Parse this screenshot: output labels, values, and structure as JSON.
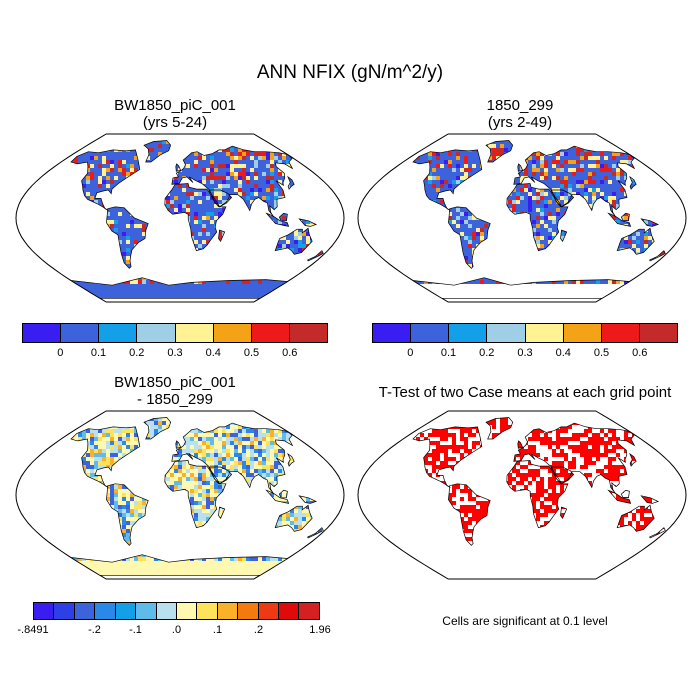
{
  "chart_data": {
    "title": "ANN NFIX (gN/m^2/y)",
    "panels": [
      {
        "type": "heatmap",
        "name": "case",
        "title_line1": "BW1850_piC_001",
        "title_line2": "(yrs 5-24)",
        "colorbar": {
          "colors": [
            "#3a1df0",
            "#3d63dc",
            "#14a0e8",
            "#9ecfe6",
            "#fff294",
            "#f5a316",
            "#ee1a1a",
            "#c42a2a"
          ],
          "tick_labels": [
            "0",
            "0.1",
            "0.2",
            "0.3",
            "0.4",
            "0.5",
            "0.6"
          ]
        }
      },
      {
        "type": "heatmap",
        "name": "reference",
        "title_line1": "1850_299",
        "title_line2": "(yrs 2-49)",
        "colorbar": {
          "colors": [
            "#3a1df0",
            "#3d63dc",
            "#14a0e8",
            "#9ecfe6",
            "#fff294",
            "#f5a316",
            "#ee1a1a",
            "#c42a2a"
          ],
          "tick_labels": [
            "0",
            "0.1",
            "0.2",
            "0.3",
            "0.4",
            "0.5",
            "0.6"
          ]
        }
      },
      {
        "type": "heatmap",
        "name": "difference",
        "title_line1": "BW1850_piC_001",
        "title_line2": "- 1850_299",
        "colorbar": {
          "colors": [
            "#3a1df0",
            "#2e3fe8",
            "#3d63dc",
            "#2a88e8",
            "#14a0e8",
            "#5fbcea",
            "#b8e0ef",
            "#fff8b0",
            "#fde25a",
            "#fbb02a",
            "#f47a10",
            "#ee3a14",
            "#e00a0a",
            "#d42020"
          ],
          "tick_labels": [
            "-.8491",
            "-.2",
            "-.1",
            ".0",
            ".1",
            ".2",
            "1.96"
          ]
        }
      },
      {
        "type": "heatmap",
        "name": "ttest",
        "title_line1": "T-Test of two Case means at each grid point",
        "note": "Cells are significant at 0.1 level",
        "significant_color": "#ff0000"
      }
    ]
  }
}
